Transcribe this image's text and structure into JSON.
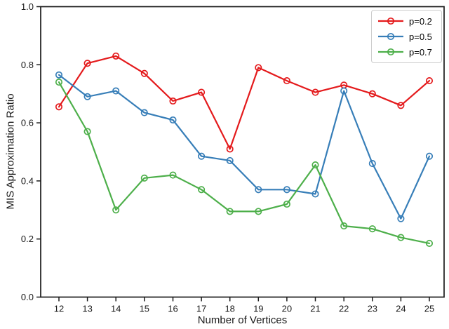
{
  "window": {
    "background": "#ffffff",
    "axis_color": "#1a1a1a"
  },
  "chart_data": {
    "type": "line",
    "title": "",
    "xlabel": "Number of Vertices",
    "ylabel": "MIS Approximation Ratio",
    "x": [
      12,
      13,
      14,
      15,
      16,
      17,
      18,
      19,
      20,
      21,
      22,
      23,
      24,
      25
    ],
    "xtick_labels": [
      "12",
      "13",
      "14",
      "15",
      "16",
      "17",
      "18",
      "19",
      "20",
      "21",
      "22",
      "23",
      "24",
      "25"
    ],
    "xlim": [
      11.35,
      25.55
    ],
    "ylim": [
      0.0,
      1.0
    ],
    "yticks": [
      0.0,
      0.2,
      0.4,
      0.6,
      0.8,
      1.0
    ],
    "ytick_labels": [
      "0.0",
      "0.2",
      "0.4",
      "0.6",
      "0.8",
      "1.0"
    ],
    "grid": false,
    "marker": "open-circle",
    "legend_position": "upper right",
    "series": [
      {
        "name": "p=0.2",
        "color": "#e41a1c",
        "values": [
          0.655,
          0.805,
          0.83,
          0.77,
          0.675,
          0.705,
          0.51,
          0.79,
          0.745,
          0.705,
          0.73,
          0.7,
          0.66,
          0.745
        ]
      },
      {
        "name": "p=0.5",
        "color": "#377eb8",
        "values": [
          0.765,
          0.69,
          0.71,
          0.635,
          0.61,
          0.485,
          0.47,
          0.37,
          0.37,
          0.355,
          0.71,
          0.46,
          0.27,
          0.485
        ]
      },
      {
        "name": "p=0.7",
        "color": "#4daf4a",
        "values": [
          0.74,
          0.57,
          0.3,
          0.41,
          0.42,
          0.37,
          0.295,
          0.295,
          0.32,
          0.455,
          0.245,
          0.235,
          0.205,
          0.185
        ]
      }
    ]
  }
}
